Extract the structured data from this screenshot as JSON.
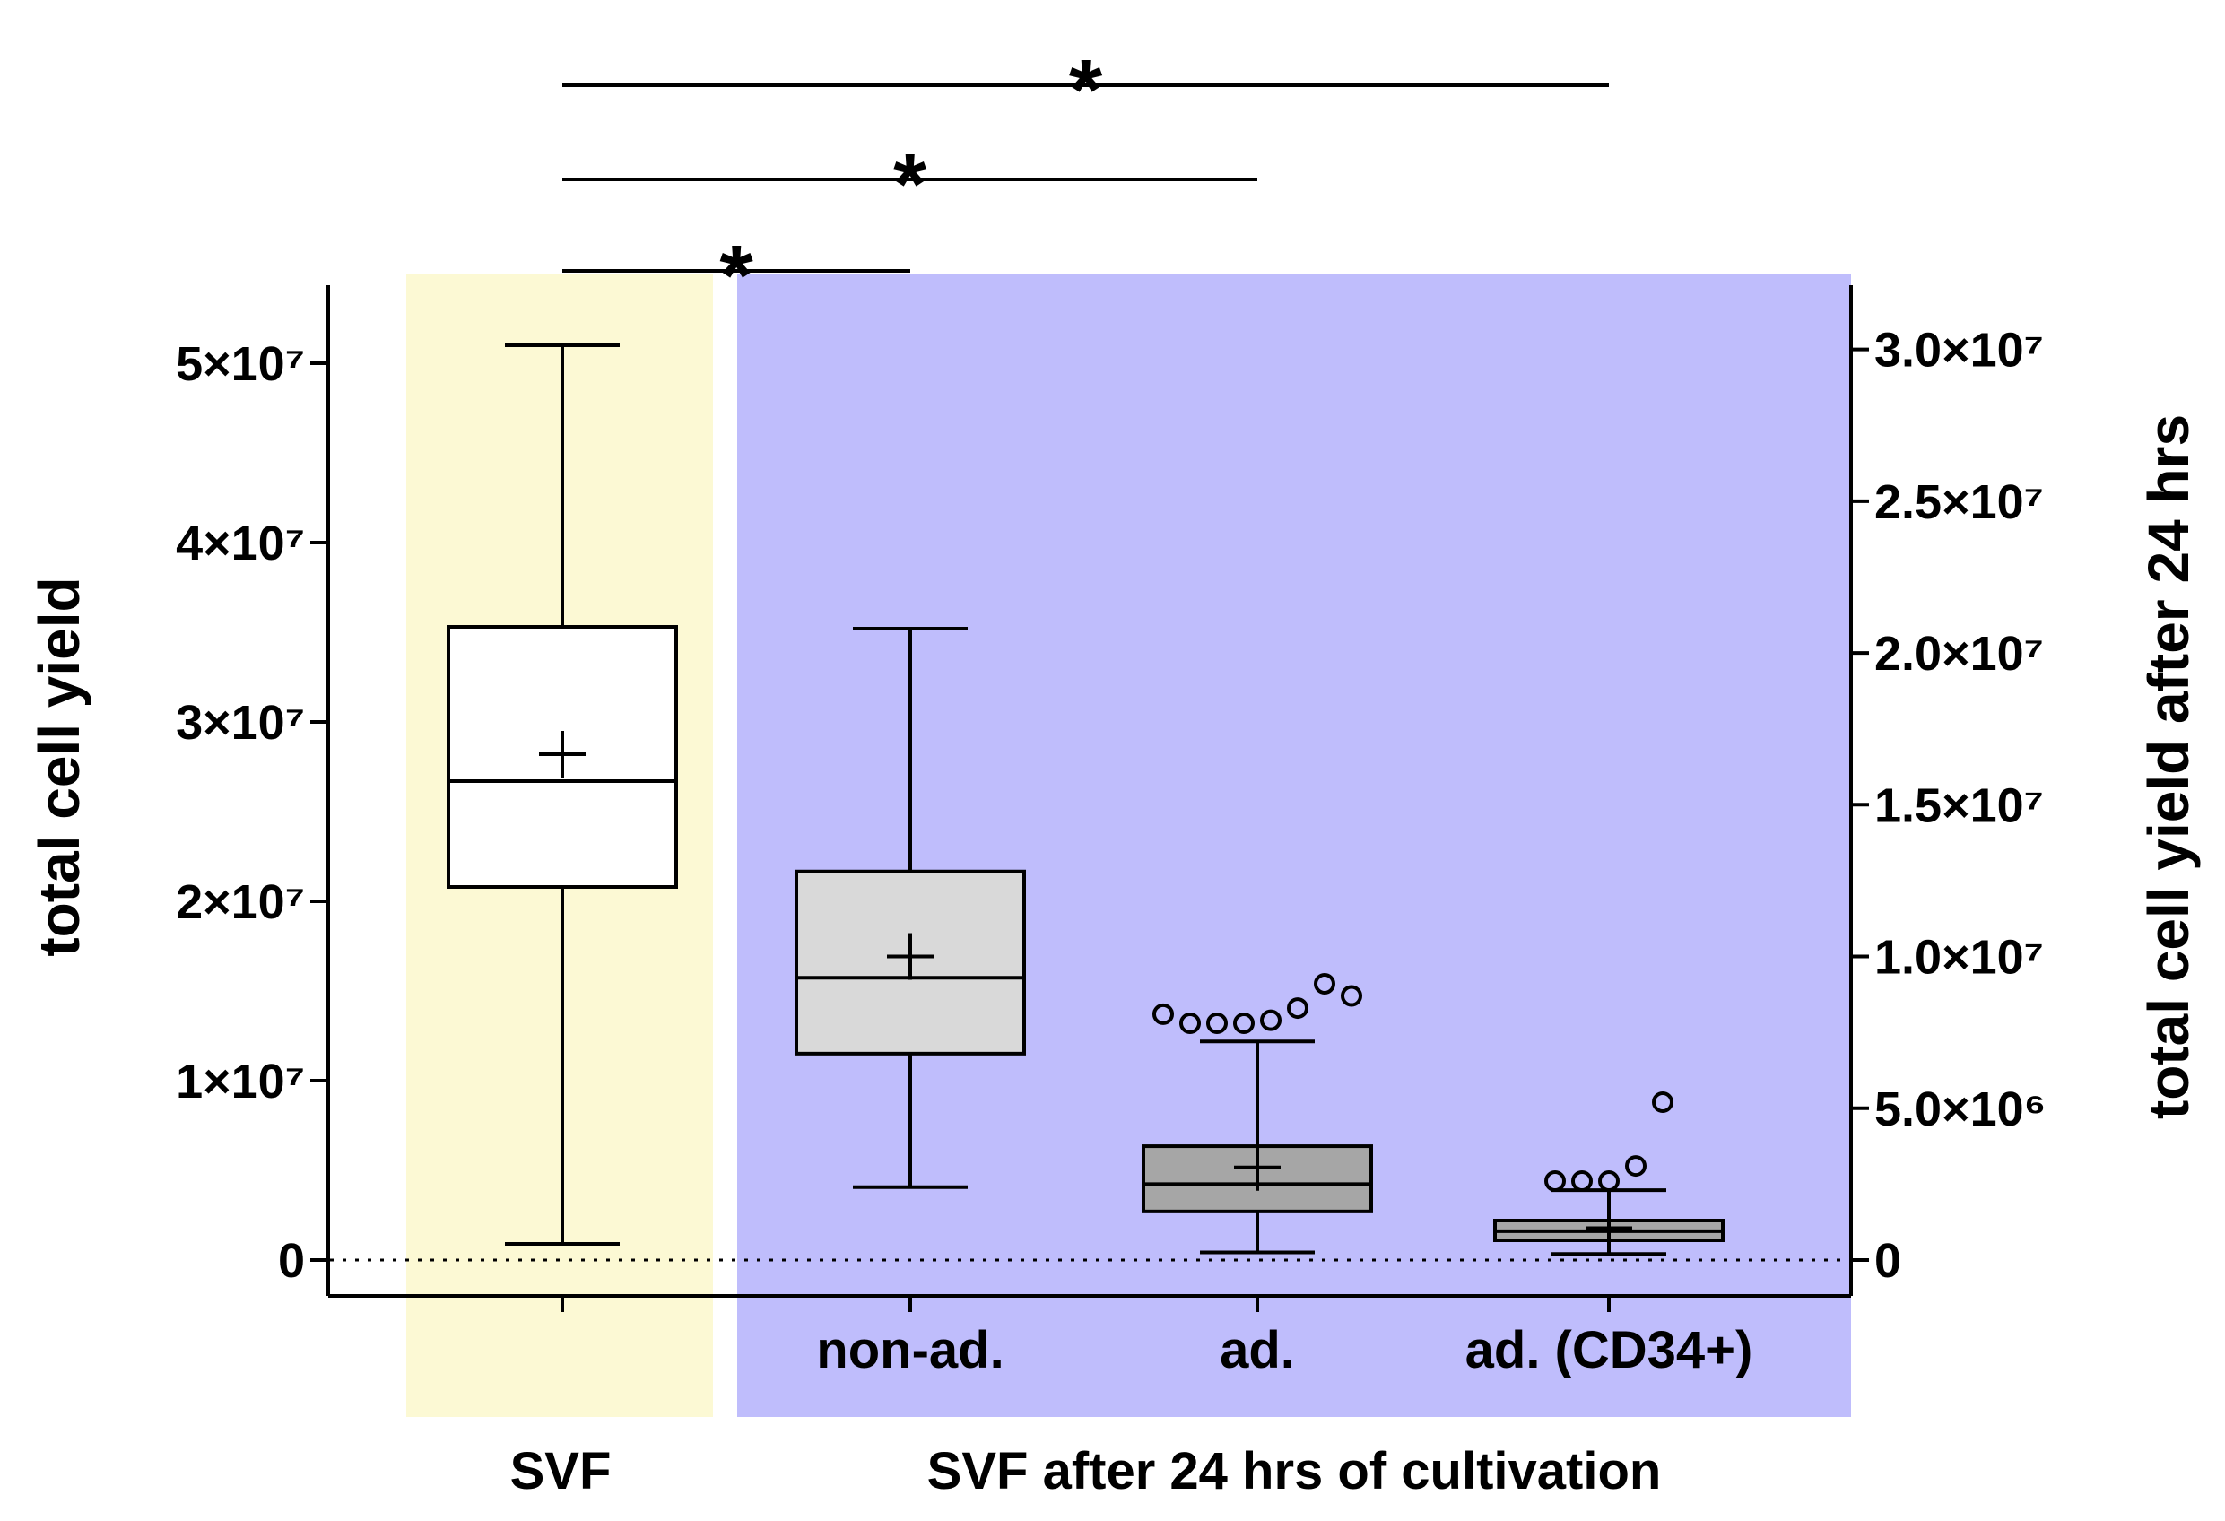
{
  "chart_data": {
    "type": "box",
    "colors": {
      "svf_background": "#fcf9d4",
      "cultivation_background": "#bfbdfc",
      "svf_box": "#ffffff",
      "non_ad_box": "#d9d9d9",
      "ad_box": "#a6a6a6",
      "ad_cd34_box": "#a6a6a6"
    },
    "left_axis": {
      "label": "total cell yield",
      "ylim": [
        -1000000,
        55000000
      ],
      "ticks": [
        {
          "value": 0,
          "label": "0"
        },
        {
          "value": 10000000,
          "label": "1×10⁷"
        },
        {
          "value": 20000000,
          "label": "2×10⁷"
        },
        {
          "value": 30000000,
          "label": "3×10⁷"
        },
        {
          "value": 40000000,
          "label": "4×10⁷"
        },
        {
          "value": 50000000,
          "label": "5×10⁷"
        }
      ]
    },
    "right_axis": {
      "label": "total cell yield after 24 hrs",
      "ylim": [
        -600000,
        32500000
      ],
      "ticks": [
        {
          "value": 0,
          "label": "0"
        },
        {
          "value": 5000000,
          "label": "5.0×10⁶"
        },
        {
          "value": 10000000,
          "label": "1.0×10⁷"
        },
        {
          "value": 15000000,
          "label": "1.5×10⁷"
        },
        {
          "value": 20000000,
          "label": "2.0×10⁷"
        },
        {
          "value": 25000000,
          "label": "2.5×10⁷"
        },
        {
          "value": 30000000,
          "label": "3.0×10⁷"
        }
      ]
    },
    "groups": [
      {
        "label": "SVF"
      },
      {
        "label": "SVF after 24 hrs of cultivation"
      }
    ],
    "boxes": [
      {
        "category": "",
        "axis": "left",
        "whisker_low": 900000,
        "q1": 20800000,
        "median": 26700000,
        "q3": 35300000,
        "whisker_high": 51000000,
        "mean": 28200000,
        "outliers": []
      },
      {
        "category": "non-ad.",
        "axis": "right",
        "whisker_low": 2400000,
        "q1": 6800000,
        "median": 9300000,
        "q3": 12800000,
        "whisker_high": 20800000,
        "mean": 10000000,
        "outliers": []
      },
      {
        "category": "ad.",
        "axis": "right",
        "whisker_low": 250000,
        "q1": 1600000,
        "median": 2500000,
        "q3": 3750000,
        "whisker_high": 7200000,
        "mean": 3050000,
        "outliers": [
          8100000,
          7800000,
          7800000,
          7800000,
          7900000,
          8300000,
          9100000,
          8700000
        ]
      },
      {
        "category": "ad. (CD34+)",
        "axis": "right",
        "whisker_low": 200000,
        "q1": 650000,
        "median": 950000,
        "q3": 1300000,
        "whisker_high": 2300000,
        "mean": 1050000,
        "outliers": [
          2600000,
          2600000,
          2600000,
          3100000,
          5200000
        ]
      }
    ],
    "reference_line": {
      "value": 0,
      "style": "dotted"
    },
    "significance": [
      {
        "from": 0,
        "to": 1,
        "label": "*"
      },
      {
        "from": 0,
        "to": 2,
        "label": "*"
      },
      {
        "from": 0,
        "to": 3,
        "label": "*"
      }
    ]
  }
}
